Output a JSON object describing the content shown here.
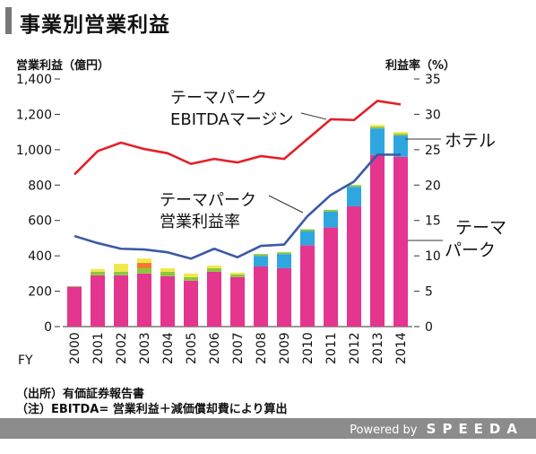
{
  "title": "事業別営業利益",
  "notes": {
    "source": "（出所）有価証券報告書",
    "note": "（注）EBITDA= 営業利益＋減価償却費により算出"
  },
  "footer": {
    "powered": "Powered by",
    "brand": "SPEEDA"
  },
  "colors": {
    "theme_park": "#e4358f",
    "hotel": "#2fa6e0",
    "yellow": "#f0e84a",
    "green": "#8cc63e",
    "orange": "#f07a2a",
    "red_line": "#e3202a",
    "blue_line": "#3c59a6"
  },
  "chart_data": {
    "type": "bar",
    "left_axis_label": "営業利益（億円）",
    "right_axis_label": "利益率（%）",
    "x_prefix": "FY",
    "categories": [
      "2000",
      "2001",
      "2002",
      "2003",
      "2004",
      "2005",
      "2006",
      "2007",
      "2008",
      "2009",
      "2010",
      "2011",
      "2012",
      "2013",
      "2014"
    ],
    "ylim": [
      0,
      1400
    ],
    "yticks": [
      "0",
      "200",
      "400",
      "600",
      "800",
      "1,000",
      "1,200",
      "1,400"
    ],
    "ylim_right": [
      0,
      35
    ],
    "yticks_right": [
      "0",
      "5",
      "10",
      "15",
      "20",
      "25",
      "30",
      "35"
    ],
    "bar_series": [
      {
        "name": "テーマパーク",
        "color": "#e4358f",
        "values": [
          225,
          290,
          290,
          300,
          285,
          260,
          310,
          280,
          340,
          330,
          460,
          560,
          680,
          970,
          960
        ]
      },
      {
        "name": "ホテル",
        "color": "#2fa6e0",
        "values": [
          0,
          0,
          0,
          0,
          0,
          0,
          0,
          0,
          60,
          80,
          80,
          90,
          110,
          150,
          120
        ]
      },
      {
        "color": "#8cc63e",
        "values": [
          3,
          20,
          20,
          30,
          25,
          20,
          20,
          15,
          10,
          10,
          10,
          10,
          10,
          10,
          10
        ]
      },
      {
        "color": "#f07a2a",
        "values": [
          0,
          0,
          0,
          30,
          0,
          0,
          0,
          0,
          0,
          0,
          0,
          0,
          0,
          0,
          0
        ]
      },
      {
        "color": "#f0e84a",
        "values": [
          0,
          15,
          45,
          25,
          20,
          20,
          15,
          10,
          0,
          0,
          0,
          0,
          0,
          10,
          10
        ]
      }
    ],
    "line_series": [
      {
        "name": "テーマパーク\nEBITDAマージン",
        "color": "#e3202a",
        "axis": "right",
        "values": [
          21.5,
          24.8,
          26.0,
          25.1,
          24.5,
          23.0,
          23.7,
          23.2,
          24.1,
          23.7,
          26.5,
          29.3,
          29.2,
          31.9,
          31.4
        ]
      },
      {
        "name": "テーマパーク\n営業利益率",
        "color": "#3c59a6",
        "axis": "right",
        "values": [
          12.8,
          11.8,
          11.0,
          10.9,
          10.5,
          9.6,
          11.0,
          9.8,
          11.4,
          11.6,
          15.6,
          18.6,
          20.5,
          24.3,
          24.3
        ]
      }
    ],
    "annotations": {
      "ebitda": [
        "テーマパーク",
        "EBITDAマージン"
      ],
      "op_margin": [
        "テーマパーク",
        "営業利益率"
      ],
      "hotel": [
        "ホテル"
      ],
      "theme_park": [
        "テーマ",
        "パーク"
      ]
    }
  }
}
